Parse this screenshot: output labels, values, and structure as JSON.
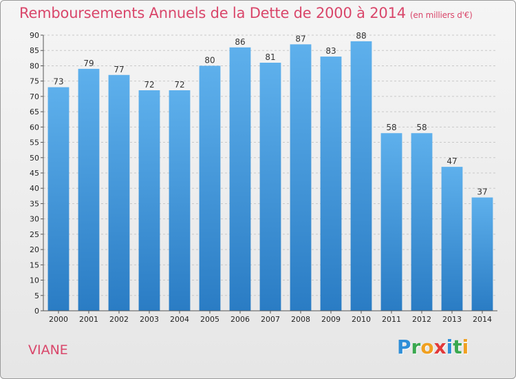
{
  "header": {
    "title": "Remboursements Annuels de la Dette de 2000 à 2014",
    "unit": "(en milliers d'€)"
  },
  "footer": {
    "commune": "VIANE",
    "brand_letters": [
      "P",
      "r",
      "o",
      "x",
      "i",
      "t",
      "i"
    ],
    "brand_colors": [
      "#2f8fd8",
      "#3aa84f",
      "#f0a020",
      "#e23a3a",
      "#2f8fd8",
      "#3aa84f",
      "#f0a020"
    ]
  },
  "chart_data": {
    "type": "bar",
    "title": "Remboursements Annuels de la Dette de 2000 à 2014",
    "subtitle": "(en milliers d'€)",
    "categories": [
      "2000",
      "2001",
      "2002",
      "2003",
      "2004",
      "2005",
      "2006",
      "2007",
      "2008",
      "2009",
      "2010",
      "2011",
      "2012",
      "2013",
      "2014"
    ],
    "values": [
      73,
      79,
      77,
      72,
      72,
      80,
      86,
      81,
      87,
      83,
      88,
      58,
      58,
      47,
      37
    ],
    "xlabel": "",
    "ylabel": "",
    "ylim": [
      0,
      90
    ],
    "yticks": [
      0,
      5,
      10,
      15,
      20,
      25,
      30,
      35,
      40,
      45,
      50,
      55,
      60,
      65,
      70,
      75,
      80,
      85,
      90
    ],
    "grid": true,
    "bar_color": "#3d93d9"
  }
}
